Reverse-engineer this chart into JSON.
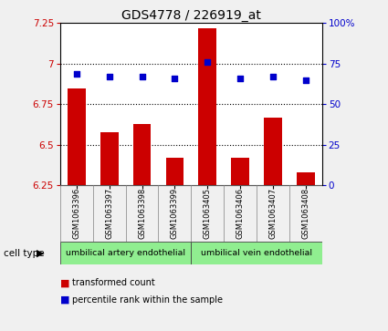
{
  "title": "GDS4778 / 226919_at",
  "samples": [
    "GSM1063396",
    "GSM1063397",
    "GSM1063398",
    "GSM1063399",
    "GSM1063405",
    "GSM1063406",
    "GSM1063407",
    "GSM1063408"
  ],
  "bar_values": [
    6.85,
    6.58,
    6.63,
    6.42,
    7.22,
    6.42,
    6.67,
    6.33
  ],
  "dot_values": [
    69,
    67,
    67,
    66,
    76,
    66,
    67,
    65
  ],
  "ylim_left": [
    6.25,
    7.25
  ],
  "ylim_right": [
    0,
    100
  ],
  "yticks_left": [
    6.25,
    6.5,
    6.75,
    7.0,
    7.25
  ],
  "yticks_right": [
    0,
    25,
    50,
    75,
    100
  ],
  "ytick_labels_left": [
    "6.25",
    "6.5",
    "6.75",
    "7",
    "7.25"
  ],
  "ytick_labels_right": [
    "0",
    "25",
    "50",
    "75",
    "100%"
  ],
  "cell_types": [
    {
      "label": "umbilical artery endothelial",
      "start": 0,
      "end": 4,
      "color": "#90ee90"
    },
    {
      "label": "umbilical vein endothelial",
      "start": 4,
      "end": 8,
      "color": "#90ee90"
    }
  ],
  "bar_color": "#cc0000",
  "dot_color": "#0000cc",
  "bar_width": 0.55,
  "grid_lines": [
    7.0,
    6.75,
    6.5
  ],
  "cell_type_label": "cell type",
  "legend_bar_label": "transformed count",
  "legend_dot_label": "percentile rank within the sample",
  "bg_color": "#f0f0f0",
  "plot_bg": "#ffffff",
  "title_fontsize": 10,
  "tick_fontsize": 7.5
}
